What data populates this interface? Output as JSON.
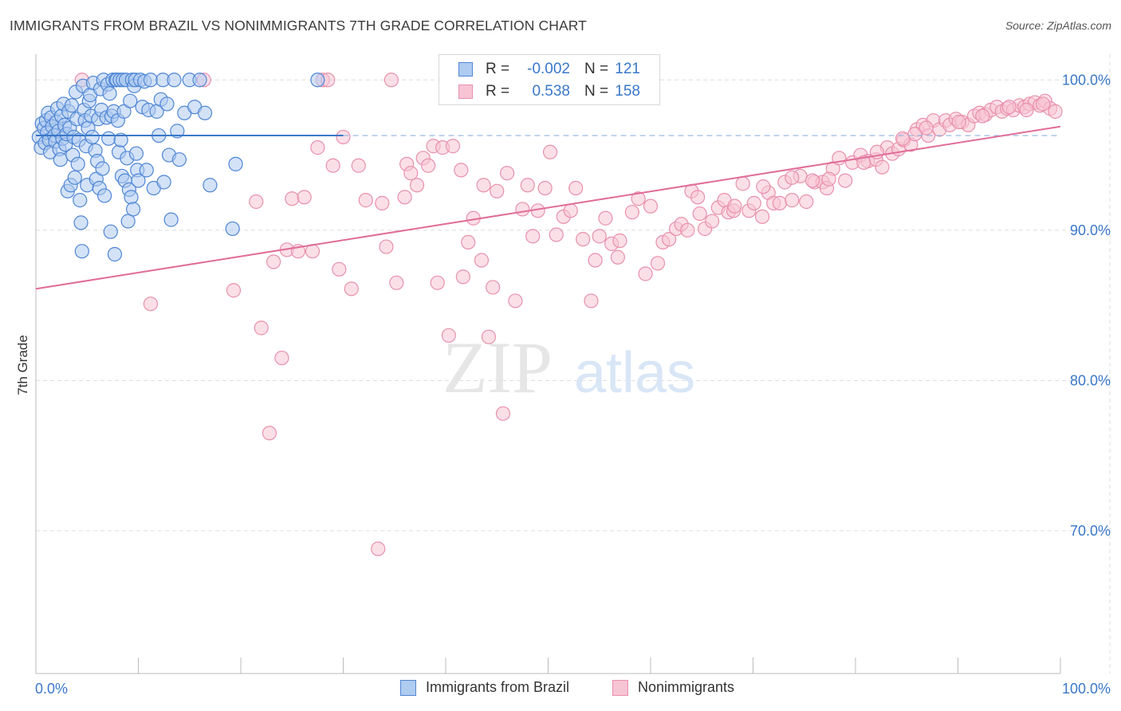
{
  "header": {
    "title": "IMMIGRANTS FROM BRAZIL VS NONIMMIGRANTS 7TH GRADE CORRELATION CHART",
    "source": "Source: ZipAtlas.com"
  },
  "watermark": {
    "zip": "ZIP",
    "atlas": "atlas"
  },
  "legend": {
    "r_label": "R =",
    "n_label": "N =",
    "rows": [
      {
        "name": "Immigrants from Brazil",
        "r": "-0.002",
        "n": "121"
      },
      {
        "name": "Nonimmigrants",
        "r": "0.538",
        "n": "158"
      }
    ]
  },
  "colors": {
    "blue_fill": "#aecbf0",
    "blue_stroke": "#4f86d4",
    "blue_line": "#3a78c9",
    "pink_fill": "#f7c4d4",
    "pink_stroke": "#e890ad",
    "pink_line": "#e06d97",
    "axis_text": "#3a78c9",
    "grid": "#dddddd"
  },
  "chart_data": {
    "type": "scatter",
    "title": "IMMIGRANTS FROM BRAZIL VS NONIMMIGRANTS 7TH GRADE CORRELATION CHART",
    "xlabel": "",
    "ylabel": "7th Grade",
    "xlim": [
      0,
      100
    ],
    "ylim": [
      60.5,
      101.5
    ],
    "x_tick_labels": [
      "0.0%",
      "100.0%"
    ],
    "y_ticks": [
      70,
      80,
      90,
      100
    ],
    "y_tick_labels": [
      "70.0%",
      "80.0%",
      "90.0%",
      "100.0%"
    ],
    "grid": true,
    "series": [
      {
        "name": "Immigrants from Brazil",
        "color": "blue",
        "r": -0.002,
        "n": 121,
        "trend": {
          "x": [
            0,
            30
          ],
          "y": [
            96.3,
            96.3
          ],
          "dashed_extension": [
            30,
            100
          ]
        },
        "points": [
          [
            0.3,
            96.2
          ],
          [
            0.5,
            95.5
          ],
          [
            0.6,
            97.1
          ],
          [
            0.8,
            96.8
          ],
          [
            0.9,
            95.8
          ],
          [
            1.0,
            97.3
          ],
          [
            1.1,
            96.5
          ],
          [
            1.2,
            97.8
          ],
          [
            1.3,
            96.0
          ],
          [
            1.4,
            95.2
          ],
          [
            1.5,
            97.5
          ],
          [
            1.6,
            96.9
          ],
          [
            1.8,
            96.3
          ],
          [
            1.9,
            95.9
          ],
          [
            2.0,
            97.2
          ],
          [
            2.1,
            98.1
          ],
          [
            2.2,
            96.6
          ],
          [
            2.3,
            95.4
          ],
          [
            2.4,
            94.7
          ],
          [
            2.5,
            97.6
          ],
          [
            2.6,
            96.1
          ],
          [
            2.7,
            98.4
          ],
          [
            2.8,
            97.0
          ],
          [
            2.9,
            95.7
          ],
          [
            3.0,
            96.4
          ],
          [
            3.1,
            92.6
          ],
          [
            3.2,
            97.9
          ],
          [
            3.3,
            96.8
          ],
          [
            3.4,
            93.0
          ],
          [
            3.5,
            98.3
          ],
          [
            3.6,
            95.0
          ],
          [
            3.7,
            96.2
          ],
          [
            3.8,
            93.5
          ],
          [
            3.9,
            99.2
          ],
          [
            4.0,
            97.4
          ],
          [
            4.1,
            94.4
          ],
          [
            4.2,
            96.0
          ],
          [
            4.3,
            92.0
          ],
          [
            4.4,
            90.5
          ],
          [
            4.5,
            88.6
          ],
          [
            4.6,
            99.6
          ],
          [
            4.7,
            98.0
          ],
          [
            4.8,
            97.3
          ],
          [
            4.9,
            95.6
          ],
          [
            5.0,
            93.0
          ],
          [
            5.1,
            96.8
          ],
          [
            5.2,
            98.6
          ],
          [
            5.3,
            99.0
          ],
          [
            5.4,
            97.6
          ],
          [
            5.5,
            96.2
          ],
          [
            5.6,
            99.8
          ],
          [
            5.8,
            95.3
          ],
          [
            5.9,
            93.4
          ],
          [
            6.0,
            94.6
          ],
          [
            6.1,
            97.4
          ],
          [
            6.2,
            92.8
          ],
          [
            6.3,
            99.4
          ],
          [
            6.4,
            98.0
          ],
          [
            6.5,
            94.1
          ],
          [
            6.6,
            100.0
          ],
          [
            6.7,
            92.3
          ],
          [
            6.9,
            97.5
          ],
          [
            7.0,
            99.7
          ],
          [
            7.1,
            96.1
          ],
          [
            7.2,
            99.1
          ],
          [
            7.3,
            89.9
          ],
          [
            7.4,
            97.6
          ],
          [
            7.5,
            100.0
          ],
          [
            7.6,
            97.9
          ],
          [
            7.7,
            88.4
          ],
          [
            7.8,
            100.0
          ],
          [
            7.9,
            100.0
          ],
          [
            8.0,
            97.3
          ],
          [
            8.1,
            95.2
          ],
          [
            8.2,
            100.0
          ],
          [
            8.3,
            96.0
          ],
          [
            8.4,
            93.6
          ],
          [
            8.5,
            100.0
          ],
          [
            8.6,
            97.9
          ],
          [
            8.7,
            93.3
          ],
          [
            8.8,
            100.0
          ],
          [
            8.9,
            94.8
          ],
          [
            9.0,
            90.6
          ],
          [
            9.1,
            92.7
          ],
          [
            9.2,
            98.6
          ],
          [
            9.3,
            92.2
          ],
          [
            9.4,
            100.0
          ],
          [
            9.5,
            91.4
          ],
          [
            9.6,
            99.6
          ],
          [
            9.7,
            100.0
          ],
          [
            9.8,
            95.1
          ],
          [
            9.9,
            94.0
          ],
          [
            10.0,
            93.3
          ],
          [
            10.2,
            100.0
          ],
          [
            10.4,
            98.2
          ],
          [
            10.6,
            99.9
          ],
          [
            10.8,
            94.0
          ],
          [
            11.0,
            98.0
          ],
          [
            11.2,
            100.0
          ],
          [
            11.5,
            92.8
          ],
          [
            11.8,
            97.9
          ],
          [
            12.0,
            96.3
          ],
          [
            12.2,
            98.7
          ],
          [
            12.4,
            100.0
          ],
          [
            12.5,
            93.2
          ],
          [
            12.8,
            98.4
          ],
          [
            13.0,
            95.0
          ],
          [
            13.2,
            90.7
          ],
          [
            13.5,
            100.0
          ],
          [
            13.8,
            96.6
          ],
          [
            14.0,
            94.7
          ],
          [
            14.5,
            97.8
          ],
          [
            15.0,
            100.0
          ],
          [
            15.5,
            98.2
          ],
          [
            16.0,
            100.0
          ],
          [
            16.5,
            97.8
          ],
          [
            17.0,
            93.0
          ],
          [
            19.5,
            94.4
          ],
          [
            19.2,
            90.1
          ],
          [
            27.5,
            100.0
          ]
        ]
      },
      {
        "name": "Nonimmigrants",
        "color": "pink",
        "r": 0.538,
        "n": 158,
        "trend": {
          "x": [
            0,
            100
          ],
          "y": [
            86.1,
            96.9
          ]
        },
        "points": [
          [
            4.5,
            100.0
          ],
          [
            11.2,
            85.1
          ],
          [
            16.4,
            100.0
          ],
          [
            19.3,
            86.0
          ],
          [
            21.5,
            91.9
          ],
          [
            22.0,
            83.5
          ],
          [
            22.8,
            76.5
          ],
          [
            23.2,
            87.9
          ],
          [
            24.0,
            81.5
          ],
          [
            24.5,
            88.7
          ],
          [
            25.0,
            92.1
          ],
          [
            25.6,
            88.6
          ],
          [
            26.2,
            92.2
          ],
          [
            27.0,
            88.6
          ],
          [
            27.5,
            95.5
          ],
          [
            28.0,
            100.0
          ],
          [
            28.5,
            100.0
          ],
          [
            29.0,
            94.3
          ],
          [
            29.6,
            87.4
          ],
          [
            30.0,
            96.2
          ],
          [
            30.8,
            86.1
          ],
          [
            31.5,
            94.3
          ],
          [
            32.2,
            92.0
          ],
          [
            33.4,
            68.8
          ],
          [
            33.8,
            91.8
          ],
          [
            34.2,
            88.9
          ],
          [
            34.7,
            100.0
          ],
          [
            35.2,
            86.5
          ],
          [
            36.0,
            92.2
          ],
          [
            36.2,
            94.4
          ],
          [
            36.6,
            93.8
          ],
          [
            37.2,
            93.0
          ],
          [
            37.8,
            94.8
          ],
          [
            38.3,
            94.3
          ],
          [
            38.8,
            95.6
          ],
          [
            39.2,
            86.5
          ],
          [
            39.7,
            95.5
          ],
          [
            40.3,
            83.0
          ],
          [
            40.7,
            95.6
          ],
          [
            41.7,
            86.9
          ],
          [
            41.5,
            94.0
          ],
          [
            42.2,
            89.2
          ],
          [
            42.7,
            90.8
          ],
          [
            43.5,
            88.0
          ],
          [
            43.7,
            93.0
          ],
          [
            44.2,
            82.9
          ],
          [
            44.6,
            86.2
          ],
          [
            45.0,
            92.6
          ],
          [
            45.6,
            77.8
          ],
          [
            46.0,
            93.8
          ],
          [
            46.8,
            85.3
          ],
          [
            47.5,
            91.4
          ],
          [
            48.0,
            93.0
          ],
          [
            48.5,
            89.6
          ],
          [
            49.0,
            91.3
          ],
          [
            49.7,
            92.8
          ],
          [
            50.2,
            95.2
          ],
          [
            50.8,
            89.7
          ],
          [
            51.5,
            90.9
          ],
          [
            52.2,
            91.3
          ],
          [
            52.7,
            92.8
          ],
          [
            53.4,
            89.4
          ],
          [
            54.2,
            85.3
          ],
          [
            54.6,
            88.0
          ],
          [
            55.0,
            89.6
          ],
          [
            55.6,
            90.8
          ],
          [
            56.2,
            89.1
          ],
          [
            56.8,
            88.2
          ],
          [
            57.0,
            89.3
          ],
          [
            58.2,
            91.2
          ],
          [
            58.8,
            92.1
          ],
          [
            59.5,
            87.1
          ],
          [
            60.0,
            91.6
          ],
          [
            60.7,
            87.8
          ],
          [
            61.2,
            89.2
          ],
          [
            61.8,
            89.4
          ],
          [
            62.5,
            90.1
          ],
          [
            63.0,
            90.4
          ],
          [
            63.6,
            90.0
          ],
          [
            64.0,
            92.6
          ],
          [
            64.6,
            92.2
          ],
          [
            65.3,
            90.1
          ],
          [
            66.0,
            90.6
          ],
          [
            66.6,
            91.5
          ],
          [
            67.2,
            92.0
          ],
          [
            67.6,
            91.2
          ],
          [
            68.1,
            91.3
          ],
          [
            69.0,
            93.1
          ],
          [
            69.6,
            91.3
          ],
          [
            70.1,
            91.8
          ],
          [
            70.9,
            90.9
          ],
          [
            71.5,
            92.5
          ],
          [
            72.0,
            91.8
          ],
          [
            72.6,
            91.8
          ],
          [
            73.1,
            93.2
          ],
          [
            73.8,
            92.0
          ],
          [
            74.6,
            93.6
          ],
          [
            75.2,
            91.9
          ],
          [
            76.0,
            93.2
          ],
          [
            76.8,
            93.2
          ],
          [
            77.2,
            92.8
          ],
          [
            77.8,
            94.1
          ],
          [
            78.4,
            94.8
          ],
          [
            79.0,
            93.3
          ],
          [
            79.7,
            94.5
          ],
          [
            80.5,
            95.0
          ],
          [
            81.2,
            94.6
          ],
          [
            82.0,
            94.7
          ],
          [
            82.6,
            94.2
          ],
          [
            83.1,
            95.5
          ],
          [
            83.6,
            95.1
          ],
          [
            84.2,
            95.4
          ],
          [
            84.7,
            96.0
          ],
          [
            85.4,
            95.7
          ],
          [
            86.0,
            96.7
          ],
          [
            86.6,
            97.0
          ],
          [
            87.1,
            96.3
          ],
          [
            87.6,
            97.3
          ],
          [
            88.2,
            96.7
          ],
          [
            88.8,
            97.3
          ],
          [
            89.2,
            97.0
          ],
          [
            89.8,
            97.4
          ],
          [
            90.4,
            97.2
          ],
          [
            91.0,
            97.0
          ],
          [
            91.6,
            97.6
          ],
          [
            92.1,
            97.8
          ],
          [
            92.7,
            97.7
          ],
          [
            93.2,
            98.0
          ],
          [
            93.8,
            98.2
          ],
          [
            94.3,
            97.9
          ],
          [
            94.8,
            98.1
          ],
          [
            95.4,
            98.0
          ],
          [
            96.0,
            98.3
          ],
          [
            96.5,
            98.2
          ],
          [
            97.0,
            98.4
          ],
          [
            97.5,
            98.5
          ],
          [
            98.0,
            98.3
          ],
          [
            98.5,
            98.6
          ],
          [
            99.0,
            98.1
          ],
          [
            99.5,
            97.9
          ],
          [
            73.8,
            93.5
          ],
          [
            80.8,
            94.5
          ],
          [
            85.8,
            96.4
          ],
          [
            90.1,
            97.2
          ],
          [
            95.0,
            98.2
          ],
          [
            98.3,
            98.4
          ],
          [
            68.2,
            91.6
          ],
          [
            77.4,
            93.4
          ],
          [
            82.1,
            95.2
          ],
          [
            86.9,
            96.8
          ],
          [
            92.4,
            97.6
          ],
          [
            96.7,
            98.0
          ],
          [
            64.8,
            91.1
          ],
          [
            71.0,
            92.9
          ],
          [
            75.8,
            93.3
          ],
          [
            84.6,
            96.1
          ]
        ]
      }
    ]
  }
}
